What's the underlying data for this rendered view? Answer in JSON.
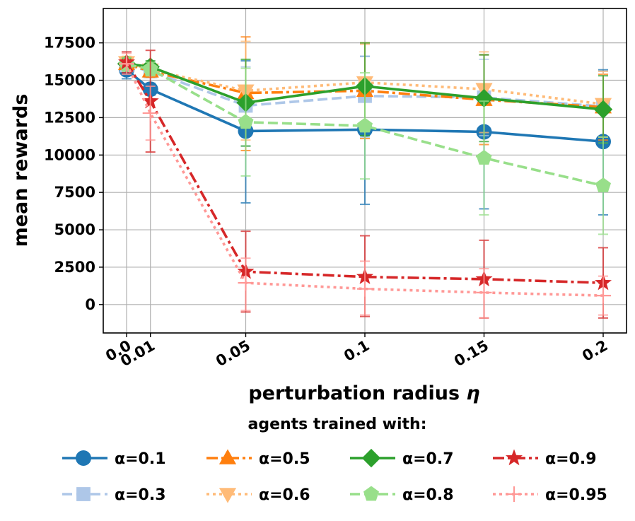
{
  "chart_data": {
    "type": "line",
    "xlabel_text": "perturbation radius ",
    "xlabel_symbol": "η",
    "ylabel": "mean rewards",
    "x": [
      0.0,
      0.01,
      0.05,
      0.1,
      0.15,
      0.2
    ],
    "x_tick_labels": [
      "0.0",
      "0.01",
      "0.05",
      "0.1",
      "0.15",
      "0.2"
    ],
    "y_ticks": [
      0,
      2500,
      5000,
      7500,
      10000,
      12500,
      15000,
      17500
    ],
    "ylim": [
      -1900,
      19800
    ],
    "grid": true,
    "legend_title": "agents trained with:",
    "legend_position": "below",
    "series": [
      {
        "name": "α=0.1",
        "color": "#1f77b4",
        "marker": "circle",
        "dash": "solid",
        "values": [
          15700,
          14400,
          11600,
          11700,
          11550,
          10900
        ],
        "err_low": [
          15100,
          14000,
          6800,
          6700,
          6400,
          6000
        ],
        "err_high": [
          16300,
          14800,
          16300,
          16600,
          16700,
          15700
        ]
      },
      {
        "name": "α=0.3",
        "color": "#aec7e8",
        "marker": "square",
        "dash": "dashed",
        "values": [
          16000,
          15600,
          13300,
          13950,
          13850,
          13250
        ],
        "err_low": [
          15600,
          15200,
          10600,
          11200,
          11300,
          10800
        ],
        "err_high": [
          16400,
          16000,
          15900,
          16600,
          16400,
          15600
        ]
      },
      {
        "name": "α=0.5",
        "color": "#ff7f0e",
        "marker": "triangle-up",
        "dash": "dashdot",
        "values": [
          16100,
          15600,
          14150,
          14300,
          13700,
          13200
        ],
        "err_low": [
          15700,
          15200,
          10300,
          11100,
          10700,
          11000
        ],
        "err_high": [
          16500,
          16000,
          17900,
          17500,
          16700,
          15400
        ]
      },
      {
        "name": "α=0.6",
        "color": "#ffbb78",
        "marker": "triangle-down",
        "dash": "dotted",
        "values": [
          16200,
          15700,
          14300,
          14850,
          14400,
          13400
        ],
        "err_low": [
          15800,
          15300,
          11000,
          12000,
          11500,
          11200
        ],
        "err_high": [
          16600,
          16100,
          17600,
          17400,
          16900,
          15600
        ]
      },
      {
        "name": "α=0.7",
        "color": "#2ca02c",
        "marker": "diamond",
        "dash": "solid",
        "values": [
          16100,
          15900,
          13500,
          14600,
          13800,
          13050
        ],
        "err_low": [
          15700,
          15500,
          10600,
          11300,
          10900,
          10800
        ],
        "err_high": [
          16500,
          16300,
          16400,
          17500,
          16700,
          15300
        ]
      },
      {
        "name": "α=0.8",
        "color": "#98df8a",
        "marker": "pentagon",
        "dash": "dashed",
        "values": [
          16050,
          15750,
          12200,
          11950,
          9800,
          7950
        ],
        "err_low": [
          15600,
          15300,
          8600,
          8400,
          6000,
          4700
        ],
        "err_high": [
          16500,
          16200,
          15800,
          15500,
          13600,
          11200
        ]
      },
      {
        "name": "α=0.9",
        "color": "#d62728",
        "marker": "star",
        "dash": "dashdot",
        "values": [
          16200,
          13600,
          2200,
          1850,
          1700,
          1450
        ],
        "err_low": [
          15500,
          10200,
          -500,
          -800,
          -900,
          -900
        ],
        "err_high": [
          16900,
          17000,
          4900,
          4600,
          4300,
          3800
        ]
      },
      {
        "name": "α=0.95",
        "color": "#ff9896",
        "marker": "plus",
        "dash": "dotted",
        "values": [
          16100,
          12800,
          1450,
          1050,
          800,
          600
        ],
        "err_low": [
          15400,
          11000,
          -400,
          -700,
          -900,
          -700
        ],
        "err_high": [
          16800,
          14600,
          3100,
          2900,
          2400,
          1900
        ]
      }
    ]
  }
}
